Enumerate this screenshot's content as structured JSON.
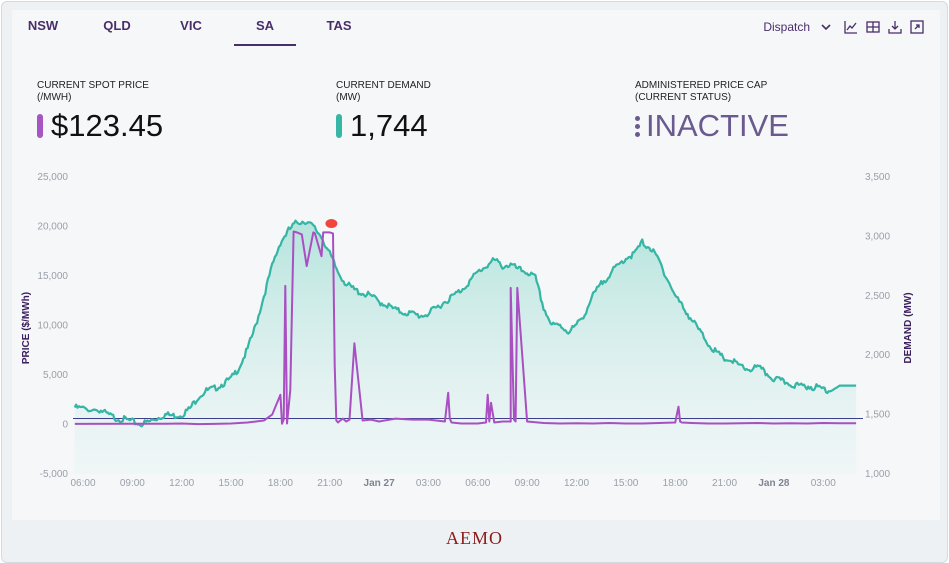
{
  "tabs": [
    {
      "label": "NSW",
      "active": false
    },
    {
      "label": "QLD",
      "active": false
    },
    {
      "label": "VIC",
      "active": false
    },
    {
      "label": "SA",
      "active": true
    },
    {
      "label": "TAS",
      "active": false
    }
  ],
  "toolbar": {
    "dropdown_label": "Dispatch",
    "icons": [
      "chevron-down-icon",
      "line-chart-icon",
      "table-icon",
      "download-icon",
      "expand-icon"
    ]
  },
  "kpis": {
    "spot_price": {
      "label_line1": "CURRENT SPOT PRICE",
      "label_line2": "(/MWh)",
      "value": "$123.45",
      "color": "#a855c4"
    },
    "demand": {
      "label_line1": "CURRENT DEMAND",
      "label_line2": "(MW)",
      "value": "1,744",
      "color": "#37b6a6"
    },
    "price_cap": {
      "label_line1": "ADMINISTERED PRICE CAP",
      "label_line2": "(CURRENT STATUS)",
      "value": "INACTIVE",
      "color": "#6b5a8e"
    }
  },
  "colors": {
    "price": "#a94fc2",
    "demand": "#35b5a3",
    "marker": "#f0463c",
    "baseline": "#3b3f8c"
  },
  "chart_data": {
    "type": "line",
    "title": "",
    "ylabel_left": "PRICE ($/MWh)",
    "ylabel_right": "DEMAND (MW)",
    "y_left_ticks": [
      "25,000",
      "20,000",
      "15,000",
      "10,000",
      "5,000",
      "0",
      "-5,000"
    ],
    "y_right_ticks": [
      "3,500",
      "3,000",
      "2,500",
      "2,000",
      "1,500",
      "1,000"
    ],
    "ylim_left": [
      -5000,
      25000
    ],
    "ylim_right": [
      1000,
      3500
    ],
    "x_ticks": [
      {
        "label": "06:00",
        "h": 0,
        "bold": false
      },
      {
        "label": "09:00",
        "h": 3,
        "bold": false
      },
      {
        "label": "12:00",
        "h": 6,
        "bold": false
      },
      {
        "label": "15:00",
        "h": 9,
        "bold": false
      },
      {
        "label": "18:00",
        "h": 12,
        "bold": false
      },
      {
        "label": "21:00",
        "h": 15,
        "bold": false
      },
      {
        "label": "Jan 27",
        "h": 18,
        "bold": true
      },
      {
        "label": "03:00",
        "h": 21,
        "bold": false
      },
      {
        "label": "06:00",
        "h": 24,
        "bold": false
      },
      {
        "label": "09:00",
        "h": 27,
        "bold": false
      },
      {
        "label": "12:00",
        "h": 30,
        "bold": false
      },
      {
        "label": "15:00",
        "h": 33,
        "bold": false
      },
      {
        "label": "18:00",
        "h": 36,
        "bold": false
      },
      {
        "label": "21:00",
        "h": 39,
        "bold": false
      },
      {
        "label": "Jan 28",
        "h": 42,
        "bold": true
      },
      {
        "label": "03:00",
        "h": 45,
        "bold": false
      }
    ],
    "demand_series": {
      "name": "Demand (MW)",
      "hours_from_06": [
        -0.5,
        0,
        1,
        1.5,
        2,
        2.5,
        3,
        3.5,
        4,
        4.5,
        5,
        5.5,
        6,
        6.5,
        7,
        7.5,
        8,
        8.5,
        9,
        9.5,
        10,
        10.5,
        11,
        11.5,
        12,
        12.5,
        13,
        13.5,
        14,
        14.5,
        15,
        15.5,
        16,
        16.5,
        17,
        17.5,
        18,
        18.5,
        19,
        19.5,
        20,
        20.5,
        21,
        21.5,
        22,
        22.5,
        23,
        23.5,
        24,
        24.5,
        25,
        25.5,
        26,
        26.5,
        27,
        27.5,
        28,
        28.5,
        29,
        29.5,
        30,
        30.5,
        31,
        31.5,
        32,
        32.5,
        33,
        33.5,
        34,
        34.5,
        35,
        35.5,
        36,
        36.5,
        37,
        37.5,
        38,
        38.5,
        39,
        39.5,
        40,
        40.5,
        41,
        41.5,
        42,
        42.5,
        43,
        43.5,
        44,
        44.5,
        45,
        45.5,
        46,
        46.5,
        47
      ],
      "values": [
        1560,
        1550,
        1540,
        1500,
        1470,
        1460,
        1440,
        1420,
        1440,
        1470,
        1500,
        1490,
        1500,
        1550,
        1650,
        1700,
        1720,
        1760,
        1800,
        1900,
        2050,
        2250,
        2500,
        2750,
        2950,
        3050,
        3120,
        3130,
        3080,
        3000,
        2850,
        2700,
        2600,
        2550,
        2520,
        2500,
        2450,
        2420,
        2380,
        2360,
        2350,
        2330,
        2350,
        2400,
        2450,
        2500,
        2550,
        2620,
        2700,
        2750,
        2800,
        2750,
        2760,
        2720,
        2700,
        2650,
        2400,
        2250,
        2250,
        2200,
        2250,
        2350,
        2500,
        2600,
        2680,
        2750,
        2820,
        2850,
        2950,
        2900,
        2800,
        2650,
        2500,
        2400,
        2300,
        2200,
        2100,
        2020,
        1970,
        1950,
        1900,
        1880,
        1900,
        1850,
        1800,
        1780,
        1760,
        1740,
        1740,
        1730,
        1720,
        1700,
        1744,
        1744,
        1744
      ]
    },
    "price_series": {
      "name": "Spot price ($/MWh)",
      "hours_from_06": [
        -0.5,
        5,
        6,
        7,
        8,
        9,
        10,
        11,
        11.5,
        12,
        12.1,
        12.2,
        12.3,
        12.4,
        12.6,
        12.8,
        13,
        13.3,
        13.6,
        14,
        14.1,
        14.5,
        14.6,
        15,
        15.2,
        15.3,
        15.4,
        15.5,
        15.6,
        15.8,
        16,
        16.2,
        16.5,
        17,
        17.5,
        18,
        19,
        20,
        21,
        22,
        22.2,
        22.3,
        22.4,
        23,
        24,
        24.5,
        24.6,
        24.7,
        24.8,
        25,
        25.5,
        26,
        26,
        26.2,
        26.3,
        26.4,
        27,
        28,
        29,
        30,
        31,
        32,
        33,
        34,
        35,
        36,
        36.2,
        36.3,
        36.4,
        37,
        38,
        39,
        40,
        41,
        42,
        43,
        44,
        45,
        46,
        47
      ],
      "values": [
        60,
        80,
        100,
        40,
        60,
        100,
        200,
        400,
        1000,
        3000,
        80,
        500,
        14000,
        100,
        3500,
        19500,
        19400,
        19200,
        16000,
        19400,
        19300,
        17000,
        19400,
        19400,
        19300,
        6000,
        400,
        200,
        350,
        600,
        300,
        500,
        8200,
        400,
        500,
        300,
        600,
        500,
        500,
        300,
        3200,
        600,
        200,
        100,
        100,
        200,
        3000,
        300,
        2200,
        200,
        300,
        300,
        13800,
        500,
        300,
        13800,
        300,
        150,
        100,
        120,
        100,
        150,
        100,
        100,
        150,
        200,
        1800,
        300,
        200,
        150,
        100,
        100,
        120,
        150,
        100,
        120,
        100,
        150,
        123.45,
        123.45
      ]
    },
    "peak_marker": {
      "hour": 15.1,
      "price": 20300
    }
  },
  "footer_text": "AEMO"
}
